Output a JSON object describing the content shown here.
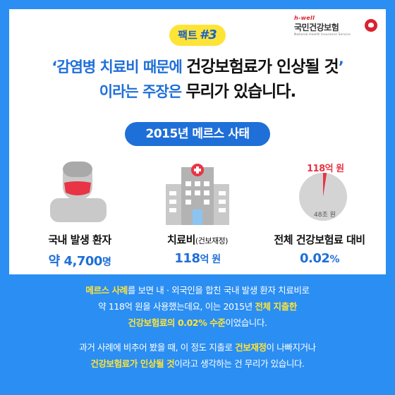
{
  "logo": {
    "brand": "h-well",
    "name": "국민건강보험",
    "sub": "National Health Insurance Service"
  },
  "badge": {
    "prefix": "팩트",
    "number": "#3"
  },
  "headline": {
    "line1_quote_open": "‘감염병 치료비 때문에 ",
    "line1_emph": "건강보험료가 인상될 것",
    "line1_quote_close": "’",
    "line2_pre": "이라는 주장은 ",
    "line2_emph": "무리가 있습니다."
  },
  "section_title": "2015년 메르스 사태",
  "stats": [
    {
      "label": "국내 발생 환자",
      "value_prefix": "약 ",
      "value": "4,700",
      "unit": "명"
    },
    {
      "label": "치료비",
      "label_small": "(건보재정)",
      "value": "118",
      "unit": "억 원"
    },
    {
      "label": "전체 건강보험료 대비",
      "value": "0.02",
      "unit": "%"
    }
  ],
  "pie": {
    "slice_label": "118억 원",
    "whole_label": "48조 원",
    "slice_fraction": 0.0245
  },
  "colors": {
    "background": "#2b8ef2",
    "accent": "#1f6fd8",
    "highlight": "#ffe438",
    "red": "#e83445"
  },
  "body": {
    "p1_a": "메르스 사례",
    "p1_b": "를 보면 내 · 외국인을 합친 국내 발생 환자 치료비로",
    "p1_c": "약 118억 원을 사용했는데요, 이는 2015년 ",
    "p1_d": "전체 지출한",
    "p1_e": "건강보험료의 0.02% 수준",
    "p1_f": "이었습니다.",
    "p2_a": "과거 사례에 비추어 봤을 때, 이 정도 지출로 ",
    "p2_b": "건보재정",
    "p2_c": "이 나빠지거나",
    "p2_d": "건강보험료가 인상될 것",
    "p2_e": "이라고 생각하는 건 무리가 있습니다."
  }
}
